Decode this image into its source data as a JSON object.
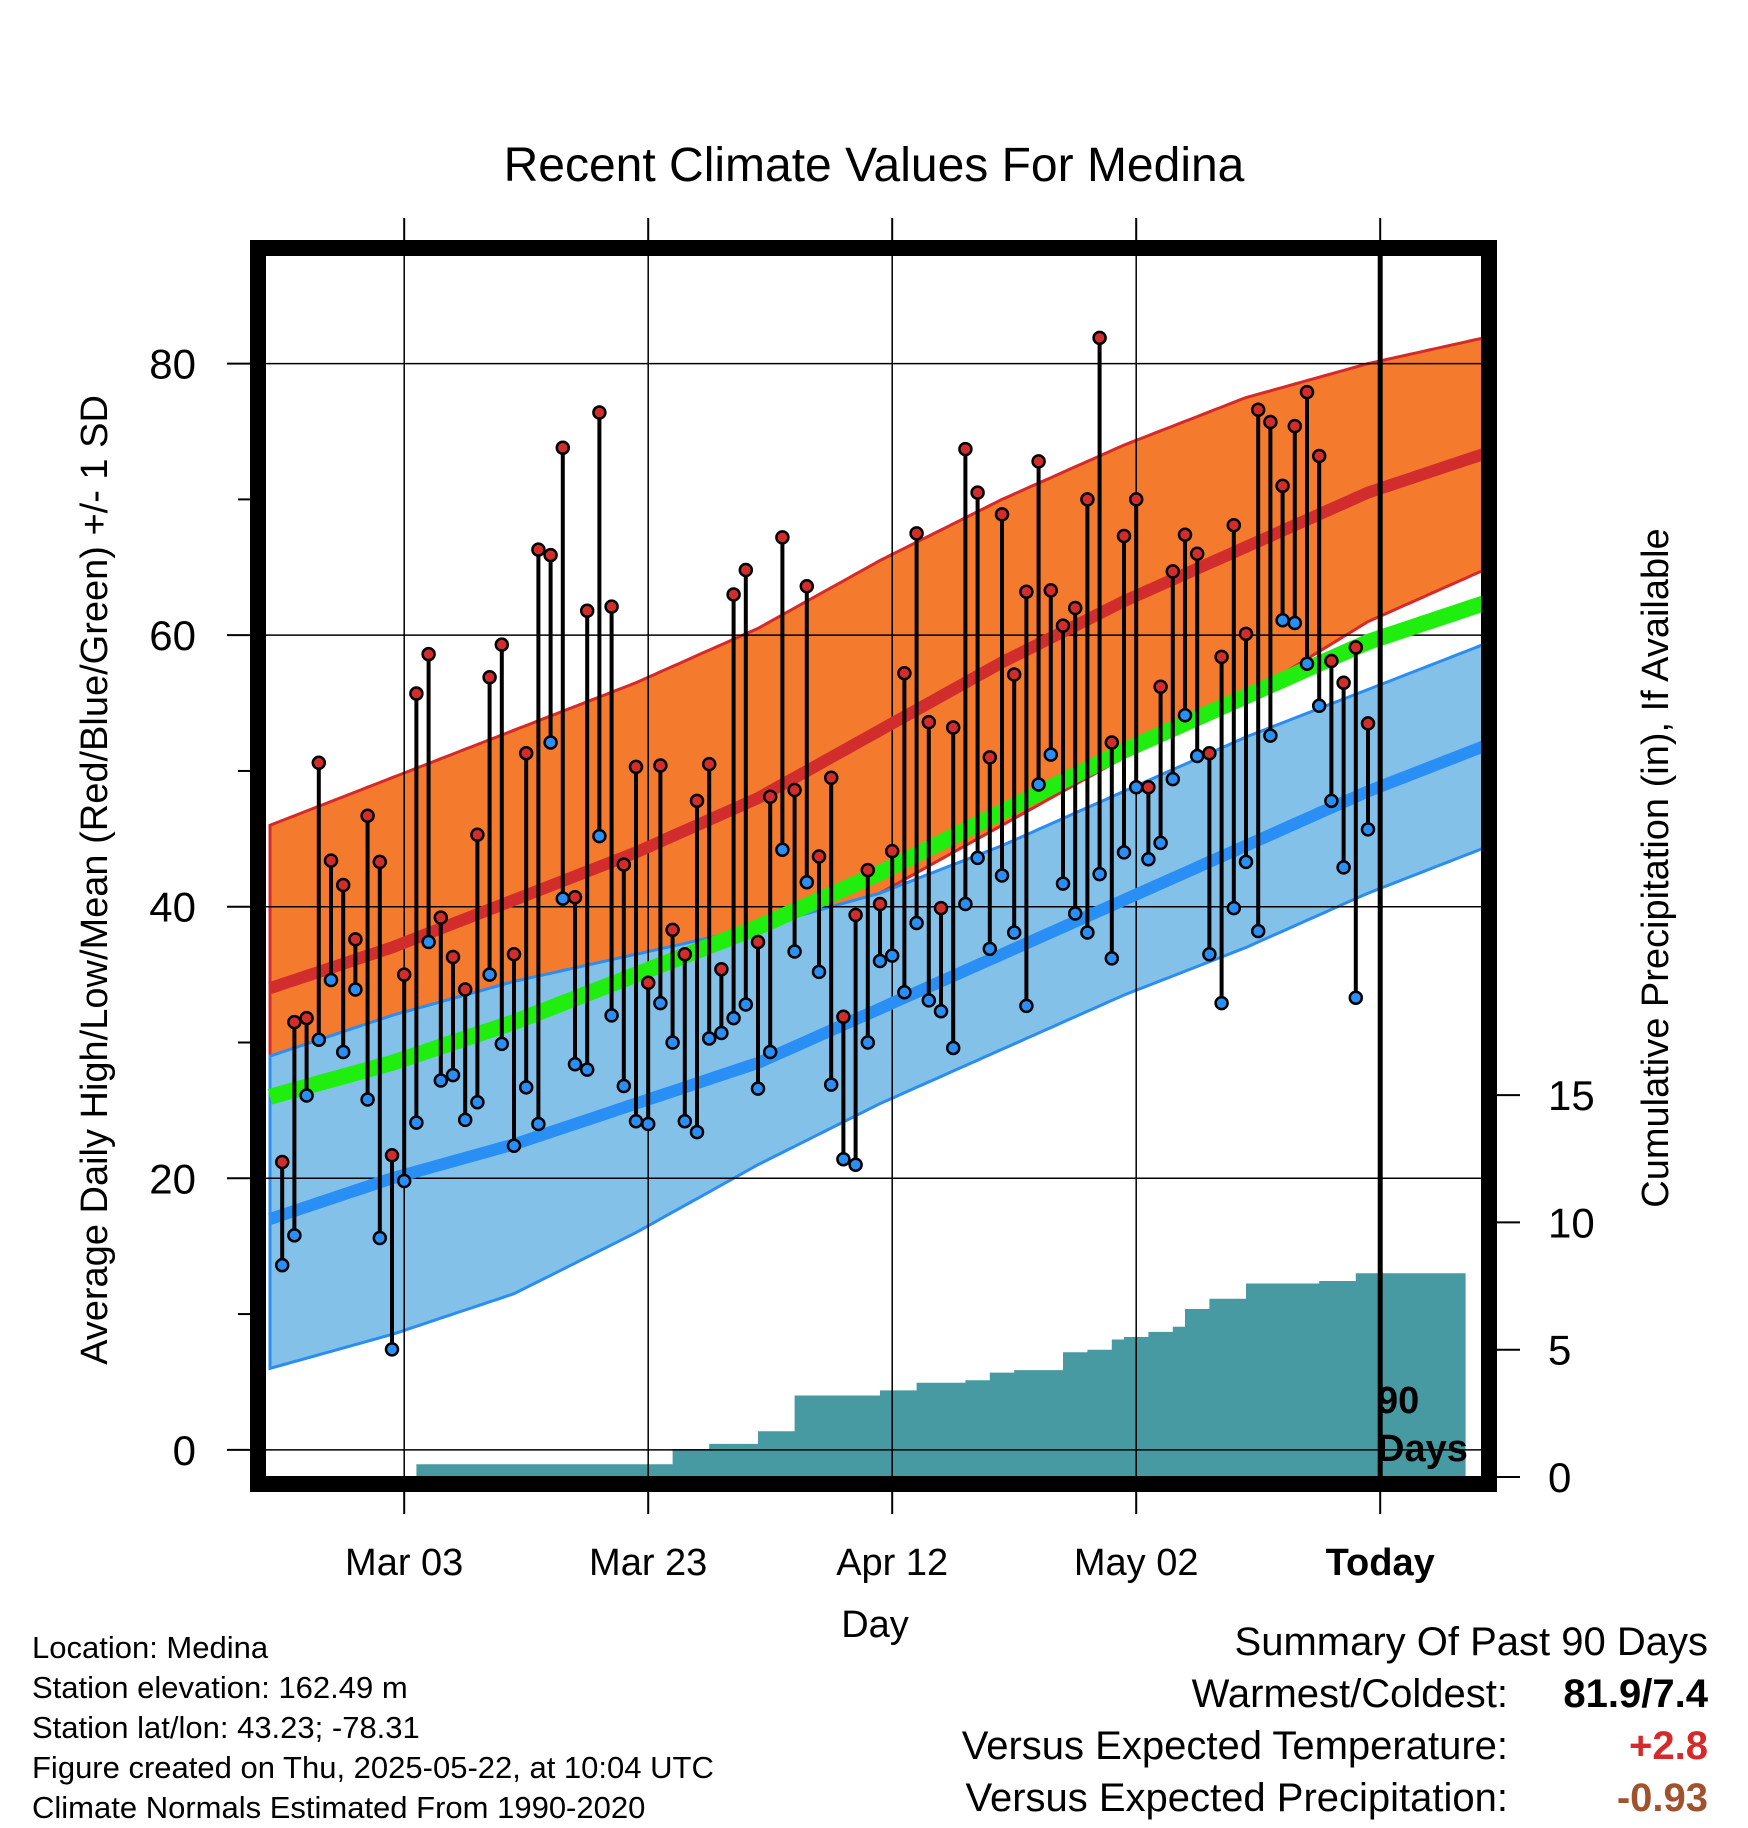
{
  "chart_data": {
    "type": "line",
    "title": "Recent Climate Values For Medina",
    "xlabel": "Day",
    "ylabel_left": "Average Daily High/Low/Mean (Red/Blue/Green) +/- 1 SD",
    "ylabel_right": "Cumulative Precipitation (in), If Available",
    "x_tick_labels": [
      "Mar 03",
      "Mar 23",
      "Apr 12",
      "May 02",
      "Today"
    ],
    "x_tick_day_index": [
      11,
      31,
      51,
      71,
      91
    ],
    "y_left_ticks": [
      0,
      20,
      40,
      60,
      80
    ],
    "y_left_range": [
      -2,
      88
    ],
    "y_right_ticks": [
      0,
      5,
      10,
      15
    ],
    "y_right_range": [
      0,
      48
    ],
    "annotation": "90 Days",
    "colors": {
      "high_band": "#f47a2e",
      "high_band_edge": "#d62a2a",
      "high_mean": "#d22d2d",
      "high_low_overlap": "#aa1e1e",
      "low_band": "#84c1e8",
      "low_band_edge": "#2b8df2",
      "low_mean": "#2a8ff5",
      "mean_normal": "#1fee0f",
      "precip": "#489aa2",
      "high_marker": "#d22d2d",
      "low_marker": "#2a8ff5",
      "summary_temp": "#d62a2a",
      "summary_precip": "#a0522d"
    },
    "normals": {
      "day_index": [
        0,
        10,
        20,
        30,
        40,
        50,
        60,
        70,
        80,
        90,
        100
      ],
      "high_mean": [
        34,
        37,
        40.5,
        44,
        48,
        53,
        58,
        62.5,
        66.5,
        70.5,
        73.5
      ],
      "high_sd_upper": [
        46,
        49.5,
        53,
        56.5,
        60.5,
        65.5,
        70,
        74,
        77.5,
        80,
        82
      ],
      "high_sd_lower": [
        23.5,
        26,
        29.5,
        32.5,
        36.5,
        41,
        46,
        51,
        55.5,
        61,
        65
      ],
      "low_mean": [
        17,
        20,
        22.5,
        25.5,
        28.5,
        32.5,
        36.5,
        40.5,
        44.5,
        48.5,
        52
      ],
      "low_sd_upper": [
        29,
        32,
        34.5,
        36.5,
        38.5,
        41,
        44.5,
        48.5,
        52.5,
        56,
        59.5
      ],
      "low_sd_lower": [
        6,
        8.5,
        11.5,
        16,
        21,
        25.5,
        29.5,
        33.5,
        37,
        41,
        44.5
      ],
      "mean": [
        26,
        28.5,
        31.5,
        35,
        38.5,
        42.5,
        47,
        51.5,
        55.5,
        59.5,
        62.5
      ]
    },
    "series": [
      {
        "name": "High",
        "values": [
          21.2,
          31.5,
          31.8,
          50.6,
          43.4,
          41.6,
          37.6,
          46.7,
          43.3,
          21.7,
          35.0,
          55.7,
          58.6,
          39.2,
          36.3,
          33.9,
          45.3,
          56.9,
          59.3,
          36.5,
          51.3,
          66.3,
          65.9,
          73.8,
          40.7,
          61.8,
          76.4,
          62.1,
          43.1,
          50.3,
          34.4,
          50.4,
          38.3,
          36.5,
          47.8,
          50.5,
          35.4,
          63.0,
          64.8,
          37.4,
          48.1,
          67.2,
          48.6,
          63.6,
          43.7,
          49.5,
          31.9,
          39.4,
          42.7,
          40.2,
          44.1,
          57.2,
          67.5,
          53.6,
          39.9,
          53.2,
          73.7,
          70.5,
          51.0,
          68.9,
          57.1,
          63.2,
          72.8,
          63.3,
          60.7,
          62.0,
          70.0,
          81.9,
          52.1,
          67.3,
          70.0,
          48.8,
          56.2,
          64.7,
          67.4,
          66.0,
          51.3,
          58.4,
          68.1,
          60.1,
          76.6,
          75.7,
          71.0,
          75.4,
          77.9,
          73.2,
          58.1,
          56.5,
          59.1,
          53.5
        ]
      },
      {
        "name": "Low",
        "values": [
          13.6,
          15.8,
          26.1,
          30.2,
          34.6,
          29.3,
          33.9,
          25.8,
          15.6,
          7.4,
          19.8,
          24.1,
          37.4,
          27.2,
          27.6,
          24.3,
          25.6,
          35.0,
          29.9,
          22.4,
          26.7,
          24.0,
          52.1,
          40.6,
          28.4,
          28.0,
          45.2,
          32.0,
          26.8,
          24.2,
          24.0,
          32.9,
          30.0,
          24.2,
          23.4,
          30.3,
          30.7,
          31.8,
          32.8,
          26.6,
          29.3,
          44.2,
          36.7,
          41.8,
          35.2,
          26.9,
          21.4,
          21.0,
          30.0,
          36.0,
          36.4,
          33.7,
          38.8,
          33.1,
          32.3,
          29.6,
          40.2,
          43.6,
          36.9,
          42.3,
          38.1,
          32.7,
          49.0,
          51.2,
          41.7,
          39.5,
          38.1,
          42.4,
          36.2,
          44.0,
          48.8,
          43.5,
          44.7,
          49.4,
          54.1,
          51.1,
          36.5,
          32.9,
          39.9,
          43.3,
          38.2,
          52.6,
          61.1,
          60.9,
          57.9,
          54.8,
          47.8,
          42.9,
          33.3,
          45.7
        ]
      }
    ],
    "cumulative_precip": {
      "day_index": [
        0,
        12,
        23,
        33,
        36,
        40,
        43,
        50,
        53,
        57,
        59,
        61,
        65,
        67,
        69,
        70,
        72,
        74,
        75,
        77,
        80,
        83,
        86,
        89,
        90,
        98
      ],
      "values": [
        0,
        0.5,
        0.5,
        1.1,
        1.3,
        1.8,
        3.2,
        3.4,
        3.7,
        3.8,
        4.1,
        4.2,
        4.9,
        5.0,
        5.4,
        5.5,
        5.7,
        5.9,
        6.6,
        7.0,
        7.6,
        7.6,
        7.7,
        8.0,
        8.0,
        8.7
      ]
    },
    "grid": true,
    "legend": "none"
  },
  "footer": {
    "location": "Location: Medina",
    "elevation": "Station elevation: 162.49 m",
    "latlon": "Station lat/lon: 43.23; -78.31",
    "created": "Figure created on Thu, 2025-05-22, at 10:04 UTC",
    "normals": "Climate Normals Estimated From 1990-2020"
  },
  "summary": {
    "heading": "Summary Of Past 90 Days",
    "warmest_label": "Warmest/Coldest:",
    "warmest_value": "81.9/7.4",
    "temp_label": "Versus Expected Temperature:",
    "temp_value": "+2.8",
    "precip_label": "Versus Expected Precipitation:",
    "precip_value": "-0.93"
  }
}
